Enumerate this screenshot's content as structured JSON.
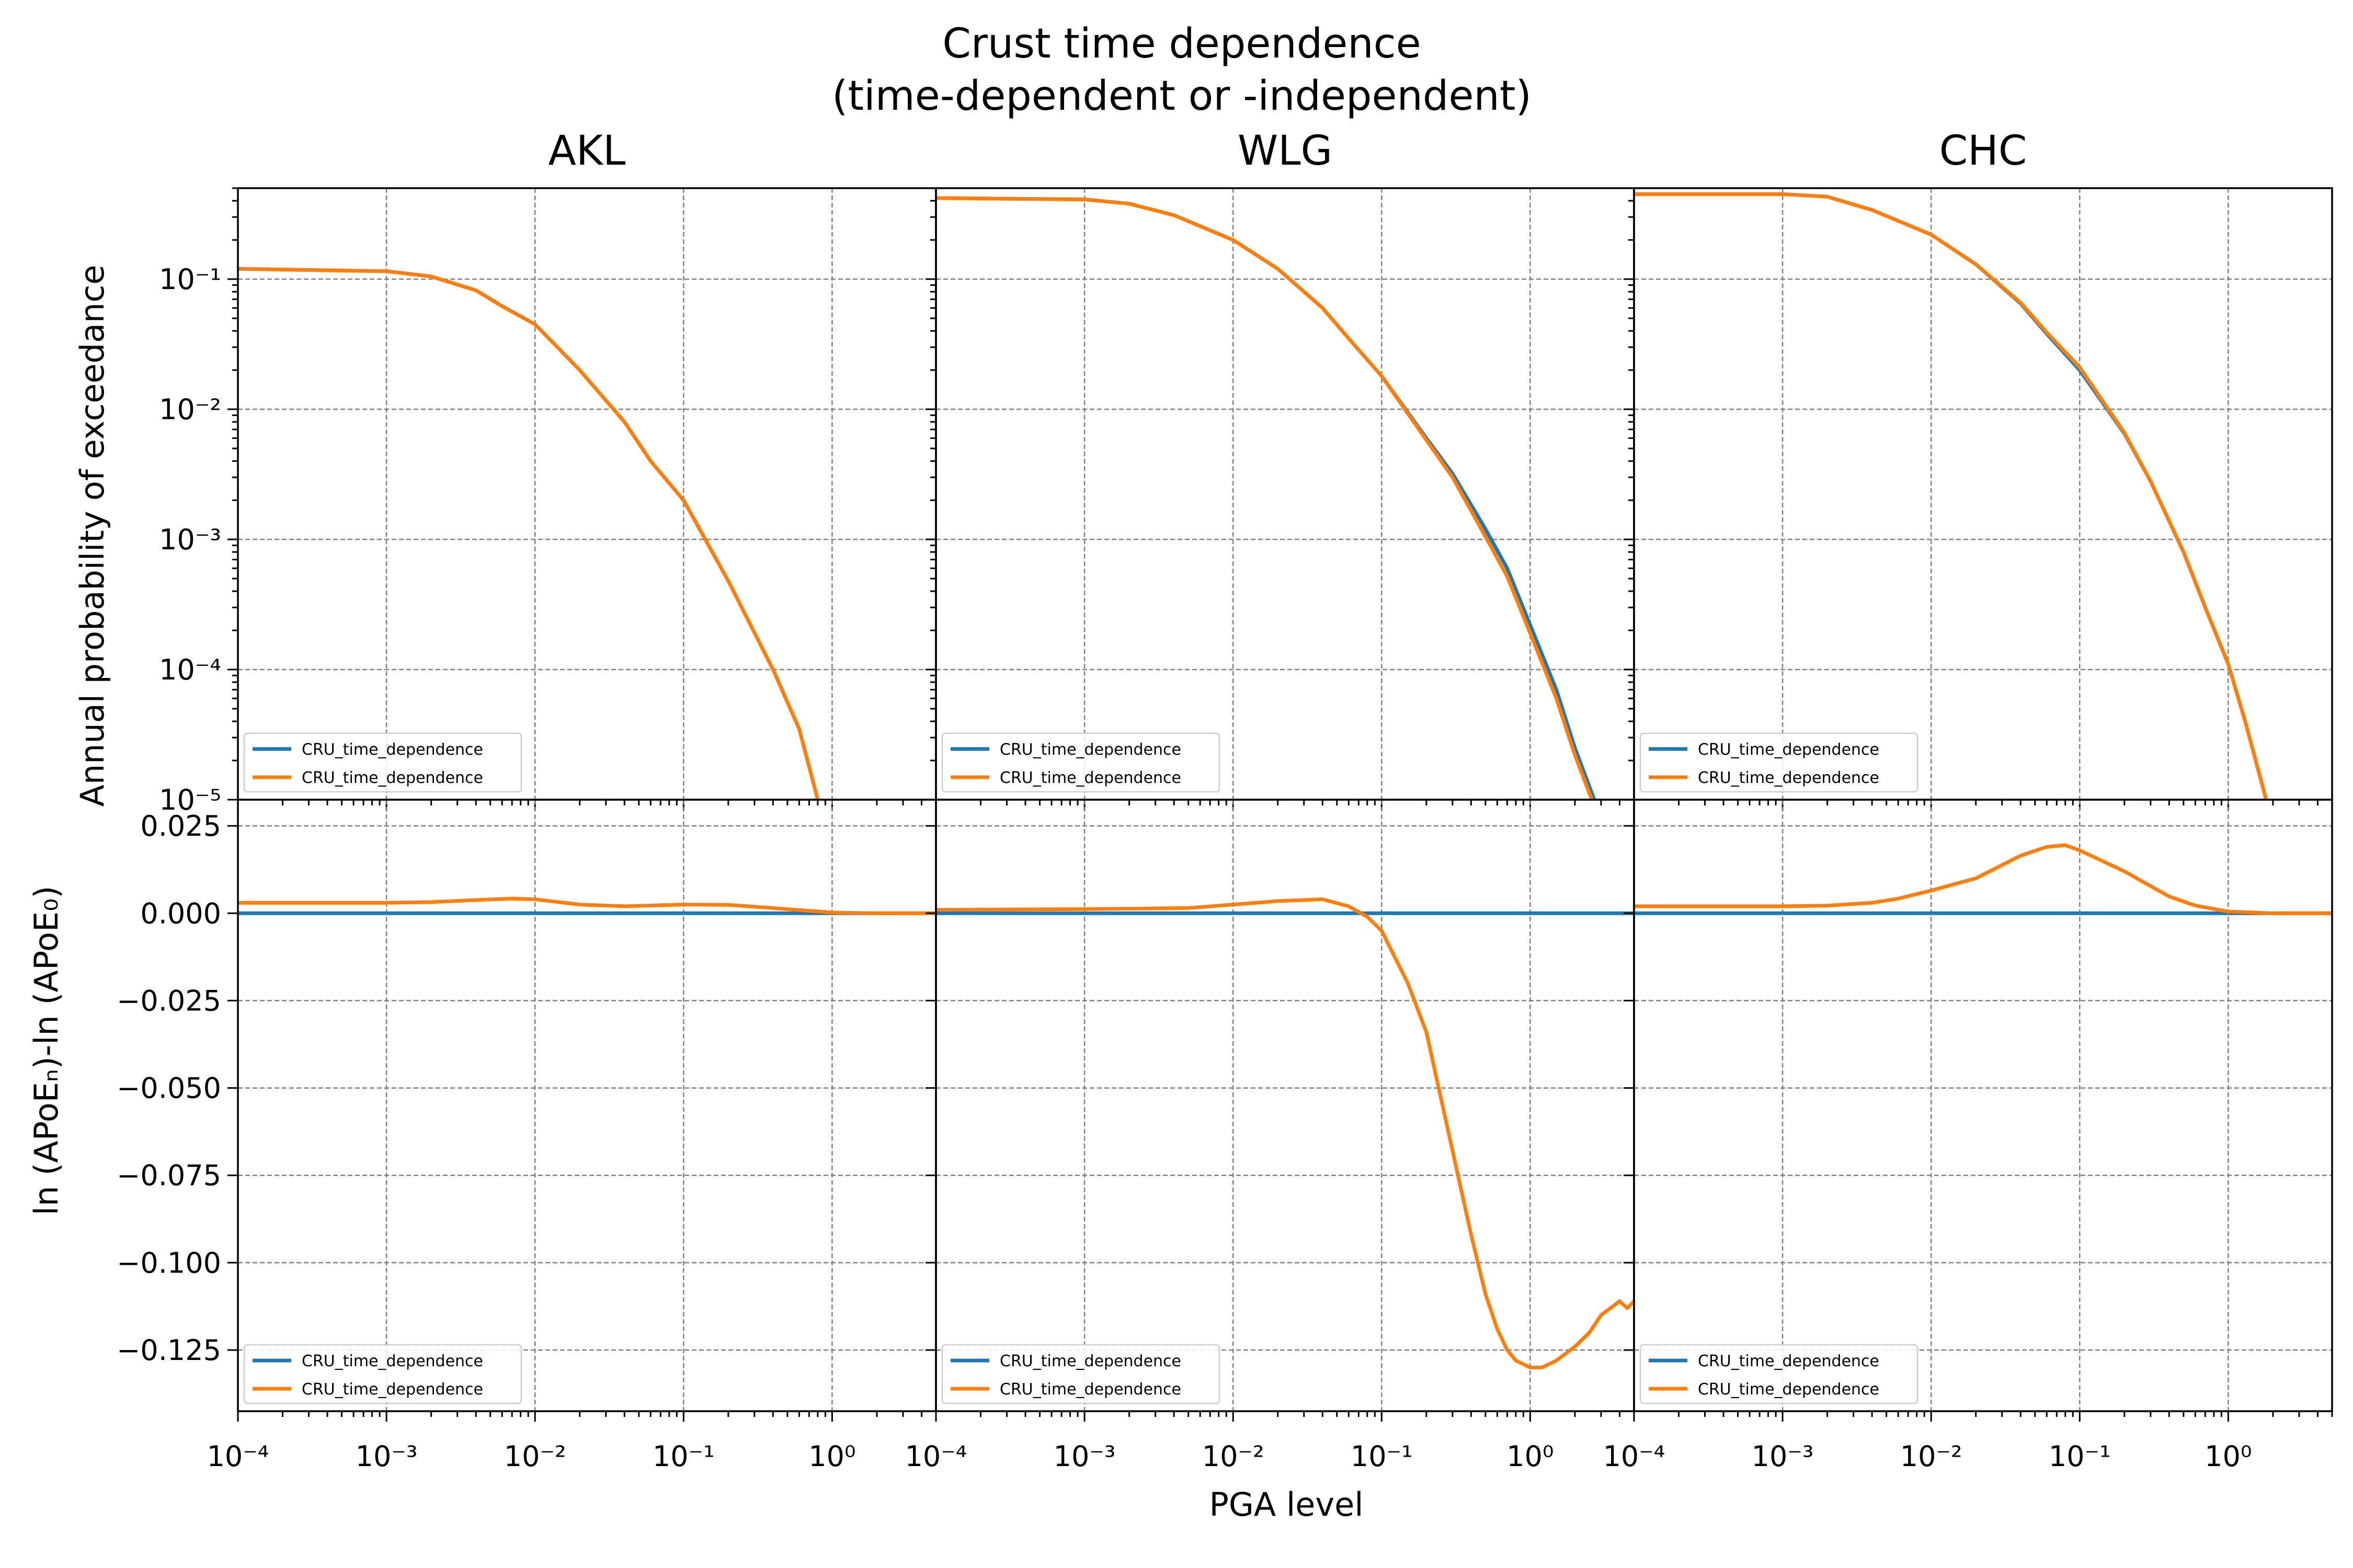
{
  "figure": {
    "title_line1": "Crust time dependence",
    "title_line2": "(time-dependent or -independent)",
    "xlabel": "PGA level",
    "ylabel_top": "Annual probability of exceedance",
    "ylabel_bottom": "ln (APoEₙ)-ln (APoE₀)"
  },
  "colors": {
    "blue": "#1f77b4",
    "orange": "#ff7f0e",
    "grid": "#808080"
  },
  "x_ticks": [
    "10⁻⁴",
    "10⁻³",
    "10⁻²",
    "10⁻¹",
    "10⁰"
  ],
  "top_y_ticks": [
    "10⁻¹",
    "10⁻²",
    "10⁻³",
    "10⁻⁴",
    "10⁻⁵"
  ],
  "bottom_y_ticks": [
    "0.025",
    "0.000",
    "−0.025",
    "−0.050",
    "−0.075",
    "−0.100",
    "−0.125"
  ],
  "legend_labels": [
    "CRU_time_dependence",
    "CRU_time_dependence"
  ],
  "chart_data": [
    {
      "type": "line",
      "panel": "AKL",
      "title": "AKL",
      "row": "top",
      "x_scale": "log",
      "y_scale": "log",
      "xlim": [
        0.0001,
        5
      ],
      "ylim": [
        1e-05,
        0.5
      ],
      "grid": true,
      "legend": "lower-left",
      "series": [
        {
          "name": "CRU_time_dependence",
          "color": "#1f77b4",
          "x": [
            0.0001,
            0.001,
            0.002,
            0.004,
            0.006,
            0.01,
            0.02,
            0.04,
            0.06,
            0.1,
            0.2,
            0.4,
            0.6,
            0.8
          ],
          "y": [
            0.12,
            0.115,
            0.105,
            0.082,
            0.062,
            0.045,
            0.02,
            0.008,
            0.004,
            0.002,
            0.00048,
            0.0001,
            3.5e-05,
            1e-05
          ]
        },
        {
          "name": "CRU_time_dependence",
          "color": "#ff7f0e",
          "x": [
            0.0001,
            0.001,
            0.002,
            0.004,
            0.006,
            0.01,
            0.02,
            0.04,
            0.06,
            0.1,
            0.2,
            0.4,
            0.6,
            0.8
          ],
          "y": [
            0.12,
            0.115,
            0.105,
            0.082,
            0.062,
            0.045,
            0.02,
            0.008,
            0.004,
            0.002,
            0.00048,
            0.0001,
            3.5e-05,
            1e-05
          ]
        }
      ]
    },
    {
      "type": "line",
      "panel": "WLG",
      "title": "WLG",
      "row": "top",
      "x_scale": "log",
      "y_scale": "log",
      "xlim": [
        0.0001,
        5
      ],
      "ylim": [
        1e-05,
        0.5
      ],
      "grid": true,
      "legend": "lower-left",
      "series": [
        {
          "name": "CRU_time_dependence",
          "color": "#1f77b4",
          "x": [
            0.0001,
            0.001,
            0.002,
            0.004,
            0.01,
            0.02,
            0.04,
            0.06,
            0.1,
            0.2,
            0.3,
            0.5,
            0.7,
            1,
            1.5,
            2,
            2.7
          ],
          "y": [
            0.42,
            0.41,
            0.38,
            0.31,
            0.2,
            0.12,
            0.06,
            0.035,
            0.018,
            0.006,
            0.0032,
            0.0012,
            0.0006,
            0.00022,
            7e-05,
            2.5e-05,
            1e-05
          ]
        },
        {
          "name": "CRU_time_dependence",
          "color": "#ff7f0e",
          "x": [
            0.0001,
            0.001,
            0.002,
            0.004,
            0.01,
            0.02,
            0.04,
            0.06,
            0.1,
            0.2,
            0.3,
            0.5,
            0.7,
            1,
            1.5,
            2,
            2.6
          ],
          "y": [
            0.42,
            0.41,
            0.38,
            0.31,
            0.2,
            0.12,
            0.06,
            0.035,
            0.018,
            0.0058,
            0.003,
            0.00105,
            0.00052,
            0.00019,
            6e-05,
            2.2e-05,
            1e-05
          ]
        }
      ]
    },
    {
      "type": "line",
      "panel": "CHC",
      "title": "CHC",
      "row": "top",
      "x_scale": "log",
      "y_scale": "log",
      "xlim": [
        0.0001,
        5
      ],
      "ylim": [
        1e-05,
        0.5
      ],
      "grid": true,
      "legend": "lower-left",
      "series": [
        {
          "name": "CRU_time_dependence",
          "color": "#1f77b4",
          "x": [
            0.0001,
            0.001,
            0.002,
            0.004,
            0.01,
            0.02,
            0.04,
            0.06,
            0.1,
            0.2,
            0.3,
            0.5,
            0.7,
            1,
            1.3,
            1.8
          ],
          "y": [
            0.45,
            0.45,
            0.43,
            0.34,
            0.22,
            0.13,
            0.065,
            0.038,
            0.02,
            0.0065,
            0.0028,
            0.0008,
            0.0003,
            0.00011,
            4e-05,
            1e-05
          ]
        },
        {
          "name": "CRU_time_dependence",
          "color": "#ff7f0e",
          "x": [
            0.0001,
            0.001,
            0.002,
            0.004,
            0.01,
            0.02,
            0.04,
            0.06,
            0.1,
            0.2,
            0.3,
            0.5,
            0.7,
            1,
            1.3,
            1.8
          ],
          "y": [
            0.45,
            0.45,
            0.43,
            0.34,
            0.22,
            0.13,
            0.066,
            0.039,
            0.021,
            0.0066,
            0.0028,
            0.0008,
            0.0003,
            0.00011,
            4e-05,
            1e-05
          ]
        }
      ]
    },
    {
      "type": "line",
      "panel": "AKL",
      "row": "bottom",
      "x_scale": "log",
      "xlim": [
        0.0001,
        5
      ],
      "ylim": [
        -0.1425,
        0.0325
      ],
      "grid": true,
      "legend": "lower-left",
      "series": [
        {
          "name": "CRU_time_dependence",
          "color": "#1f77b4",
          "x": [
            0.0001,
            5
          ],
          "y": [
            0,
            0
          ]
        },
        {
          "name": "CRU_time_dependence",
          "color": "#ff7f0e",
          "x": [
            0.0001,
            0.001,
            0.002,
            0.004,
            0.007,
            0.01,
            0.02,
            0.04,
            0.1,
            0.2,
            0.4,
            1,
            2,
            5
          ],
          "y": [
            0.003,
            0.003,
            0.0032,
            0.0038,
            0.0042,
            0.004,
            0.0025,
            0.002,
            0.0025,
            0.0024,
            0.0015,
            0.0002,
            0,
            0
          ]
        }
      ]
    },
    {
      "type": "line",
      "panel": "WLG",
      "row": "bottom",
      "x_scale": "log",
      "xlim": [
        0.0001,
        5
      ],
      "ylim": [
        -0.1425,
        0.0325
      ],
      "grid": true,
      "legend": "lower-left",
      "series": [
        {
          "name": "CRU_time_dependence",
          "color": "#1f77b4",
          "x": [
            0.0001,
            5
          ],
          "y": [
            0,
            0
          ]
        },
        {
          "name": "CRU_time_dependence",
          "color": "#ff7f0e",
          "x": [
            0.0001,
            0.001,
            0.005,
            0.01,
            0.02,
            0.04,
            0.06,
            0.08,
            0.1,
            0.15,
            0.2,
            0.3,
            0.4,
            0.5,
            0.6,
            0.7,
            0.8,
            1,
            1.2,
            1.5,
            2,
            2.5,
            3,
            4,
            4.5,
            5
          ],
          "y": [
            0.001,
            0.0012,
            0.0015,
            0.0025,
            0.0035,
            0.004,
            0.002,
            -0.001,
            -0.005,
            -0.02,
            -0.034,
            -0.068,
            -0.092,
            -0.109,
            -0.119,
            -0.125,
            -0.128,
            -0.13,
            -0.13,
            -0.128,
            -0.124,
            -0.12,
            -0.115,
            -0.111,
            -0.113,
            -0.111
          ]
        }
      ]
    },
    {
      "type": "line",
      "panel": "CHC",
      "row": "bottom",
      "x_scale": "log",
      "xlim": [
        0.0001,
        5
      ],
      "ylim": [
        -0.1425,
        0.0325
      ],
      "grid": true,
      "legend": "lower-left",
      "series": [
        {
          "name": "CRU_time_dependence",
          "color": "#1f77b4",
          "x": [
            0.0001,
            5
          ],
          "y": [
            0,
            0
          ]
        },
        {
          "name": "CRU_time_dependence",
          "color": "#ff7f0e",
          "x": [
            0.0001,
            0.001,
            0.002,
            0.004,
            0.006,
            0.01,
            0.02,
            0.04,
            0.06,
            0.08,
            0.1,
            0.2,
            0.4,
            0.6,
            1,
            2,
            5
          ],
          "y": [
            0.002,
            0.002,
            0.0022,
            0.003,
            0.0042,
            0.0065,
            0.01,
            0.0165,
            0.019,
            0.0195,
            0.018,
            0.012,
            0.0048,
            0.0022,
            0.0005,
            0,
            0
          ]
        }
      ]
    }
  ]
}
